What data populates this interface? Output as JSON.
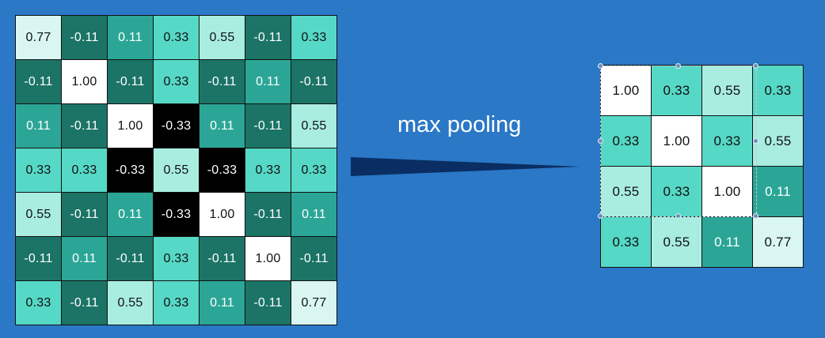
{
  "label": "max pooling",
  "colors": {
    "background": "#2a78c6",
    "cell_white": "#ffffff",
    "cell_black": "#000000",
    "cell_pale": "#d9f6f2",
    "cell_light": "#a9ede1",
    "cell_mid": "#56d8c6",
    "cell_teal": "#2ba696",
    "cell_dark": "#1b7466",
    "arrow": "#0a2e63"
  },
  "input_matrix": [
    [
      "0.77",
      "-0.11",
      "0.11",
      "0.33",
      "0.55",
      "-0.11",
      "0.33"
    ],
    [
      "-0.11",
      "1.00",
      "-0.11",
      "0.33",
      "-0.11",
      "0.11",
      "-0.11"
    ],
    [
      "0.11",
      "-0.11",
      "1.00",
      "-0.33",
      "0.11",
      "-0.11",
      "0.55"
    ],
    [
      "0.33",
      "0.33",
      "-0.33",
      "0.55",
      "-0.33",
      "0.33",
      "0.33"
    ],
    [
      "0.55",
      "-0.11",
      "0.11",
      "-0.33",
      "1.00",
      "-0.11",
      "0.11"
    ],
    [
      "-0.11",
      "0.11",
      "-0.11",
      "0.33",
      "-0.11",
      "1.00",
      "-0.11"
    ],
    [
      "0.33",
      "-0.11",
      "0.55",
      "0.33",
      "0.11",
      "-0.11",
      "0.77"
    ]
  ],
  "output_matrix": [
    [
      "1.00",
      "0.33",
      "0.55",
      "0.33"
    ],
    [
      "0.33",
      "1.00",
      "0.33",
      "0.55"
    ],
    [
      "0.55",
      "0.33",
      "1.00",
      "0.11"
    ],
    [
      "0.33",
      "0.55",
      "0.11",
      "0.77"
    ]
  ]
}
